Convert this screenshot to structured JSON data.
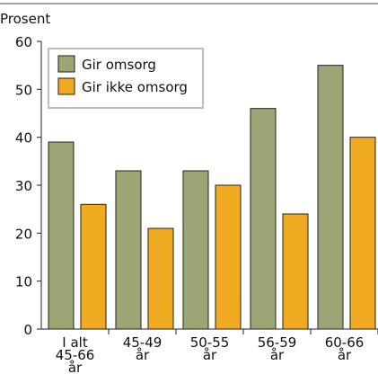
{
  "chart_data": {
    "type": "bar",
    "ylabel": "Prosent",
    "ylim": [
      0,
      60
    ],
    "yticks": [
      0,
      10,
      20,
      30,
      40,
      50,
      60
    ],
    "grid": false,
    "legend_position": "top-left",
    "categories": [
      [
        "I alt",
        "45-66",
        "år"
      ],
      [
        "45-49",
        "år"
      ],
      [
        "50-55",
        "år"
      ],
      [
        "56-59",
        "år"
      ],
      [
        "60-66",
        "år"
      ]
    ],
    "series": [
      {
        "name": "Gir omsorg",
        "color": "#9ca674",
        "values": [
          39,
          33,
          33,
          46,
          55
        ]
      },
      {
        "name": "Gir ikke omsorg",
        "color": "#f0ab22",
        "values": [
          26,
          21,
          30,
          24,
          40
        ]
      }
    ]
  }
}
